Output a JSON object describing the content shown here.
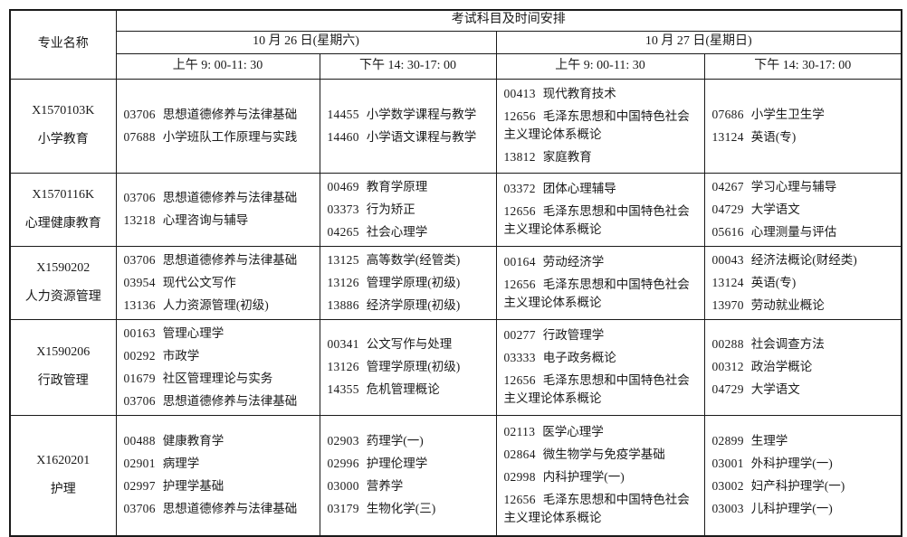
{
  "table": {
    "corner_header": "专业名称",
    "main_header": "考试科目及时间安排",
    "day_headers": [
      "10 月 26 日(星期六)",
      "10 月 27 日(星期日)"
    ],
    "session_headers": [
      "上午 9: 00-11: 30",
      "下午 14: 30-17: 00",
      "上午 9: 00-11: 30",
      "下午 14: 30-17: 00"
    ],
    "rows": [
      {
        "major_code": "X1570103K",
        "major_name": "小学教育",
        "cells": [
          [
            {
              "code": "03706",
              "name": "思想道德修养与法律基础"
            },
            {
              "code": "07688",
              "name": "小学班队工作原理与实践"
            }
          ],
          [
            {
              "code": "14455",
              "name": "小学数学课程与教学"
            },
            {
              "code": "14460",
              "name": "小学语文课程与教学"
            }
          ],
          [
            {
              "code": "00413",
              "name": "现代教育技术"
            },
            {
              "code": "12656",
              "name": "毛泽东思想和中国特色社会主义理论体系概论"
            },
            {
              "code": "13812",
              "name": "家庭教育"
            }
          ],
          [
            {
              "code": "07686",
              "name": "小学生卫生学"
            },
            {
              "code": "13124",
              "name": "英语(专)"
            }
          ]
        ]
      },
      {
        "major_code": "X1570116K",
        "major_name": "心理健康教育",
        "cells": [
          [
            {
              "code": "03706",
              "name": "思想道德修养与法律基础"
            },
            {
              "code": "13218",
              "name": "心理咨询与辅导"
            }
          ],
          [
            {
              "code": "00469",
              "name": "教育学原理"
            },
            {
              "code": "03373",
              "name": "行为矫正"
            },
            {
              "code": "04265",
              "name": "社会心理学"
            }
          ],
          [
            {
              "code": "03372",
              "name": "团体心理辅导"
            },
            {
              "code": "12656",
              "name": "毛泽东思想和中国特色社会主义理论体系概论"
            }
          ],
          [
            {
              "code": "04267",
              "name": "学习心理与辅导"
            },
            {
              "code": "04729",
              "name": "大学语文"
            },
            {
              "code": "05616",
              "name": "心理测量与评估"
            }
          ]
        ]
      },
      {
        "major_code": "X1590202",
        "major_name": "人力资源管理",
        "cells": [
          [
            {
              "code": "03706",
              "name": "思想道德修养与法律基础"
            },
            {
              "code": "03954",
              "name": "现代公文写作"
            },
            {
              "code": "13136",
              "name": "人力资源管理(初级)"
            }
          ],
          [
            {
              "code": "13125",
              "name": "高等数学(经管类)"
            },
            {
              "code": "13126",
              "name": "管理学原理(初级)"
            },
            {
              "code": "13886",
              "name": "经济学原理(初级)"
            }
          ],
          [
            {
              "code": "00164",
              "name": "劳动经济学"
            },
            {
              "code": "12656",
              "name": "毛泽东思想和中国特色社会主义理论体系概论"
            }
          ],
          [
            {
              "code": "00043",
              "name": "经济法概论(财经类)"
            },
            {
              "code": "13124",
              "name": "英语(专)"
            },
            {
              "code": "13970",
              "name": "劳动就业概论"
            }
          ]
        ]
      },
      {
        "major_code": "X1590206",
        "major_name": "行政管理",
        "cells": [
          [
            {
              "code": "00163",
              "name": "管理心理学"
            },
            {
              "code": "00292",
              "name": "市政学"
            },
            {
              "code": "01679",
              "name": "社区管理理论与实务"
            },
            {
              "code": "03706",
              "name": "思想道德修养与法律基础"
            }
          ],
          [
            {
              "code": "00341",
              "name": "公文写作与处理"
            },
            {
              "code": "13126",
              "name": "管理学原理(初级)"
            },
            {
              "code": "14355",
              "name": "危机管理概论"
            }
          ],
          [
            {
              "code": "00277",
              "name": "行政管理学"
            },
            {
              "code": "03333",
              "name": "电子政务概论"
            },
            {
              "code": "12656",
              "name": "毛泽东思想和中国特色社会主义理论体系概论"
            }
          ],
          [
            {
              "code": "00288",
              "name": "社会调查方法"
            },
            {
              "code": "00312",
              "name": "政治学概论"
            },
            {
              "code": "04729",
              "name": "大学语文"
            }
          ]
        ]
      },
      {
        "major_code": "X1620201",
        "major_name": "护理",
        "cells": [
          [
            {
              "code": "00488",
              "name": "健康教育学"
            },
            {
              "code": "02901",
              "name": "病理学"
            },
            {
              "code": "02997",
              "name": "护理学基础"
            },
            {
              "code": "03706",
              "name": "思想道德修养与法律基础"
            }
          ],
          [
            {
              "code": "02903",
              "name": "药理学(一)"
            },
            {
              "code": "02996",
              "name": "护理伦理学"
            },
            {
              "code": "03000",
              "name": "营养学"
            },
            {
              "code": "03179",
              "name": "生物化学(三)"
            }
          ],
          [
            {
              "code": "02113",
              "name": "医学心理学"
            },
            {
              "code": "02864",
              "name": "微生物学与免疫学基础"
            },
            {
              "code": "02998",
              "name": "内科护理学(一)"
            },
            {
              "code": "12656",
              "name": "毛泽东思想和中国特色社会主义理论体系概论"
            }
          ],
          [
            {
              "code": "02899",
              "name": "生理学"
            },
            {
              "code": "03001",
              "name": "外科护理学(一)"
            },
            {
              "code": "03002",
              "name": "妇产科护理学(一)"
            },
            {
              "code": "03003",
              "name": "儿科护理学(一)"
            }
          ]
        ]
      }
    ]
  }
}
